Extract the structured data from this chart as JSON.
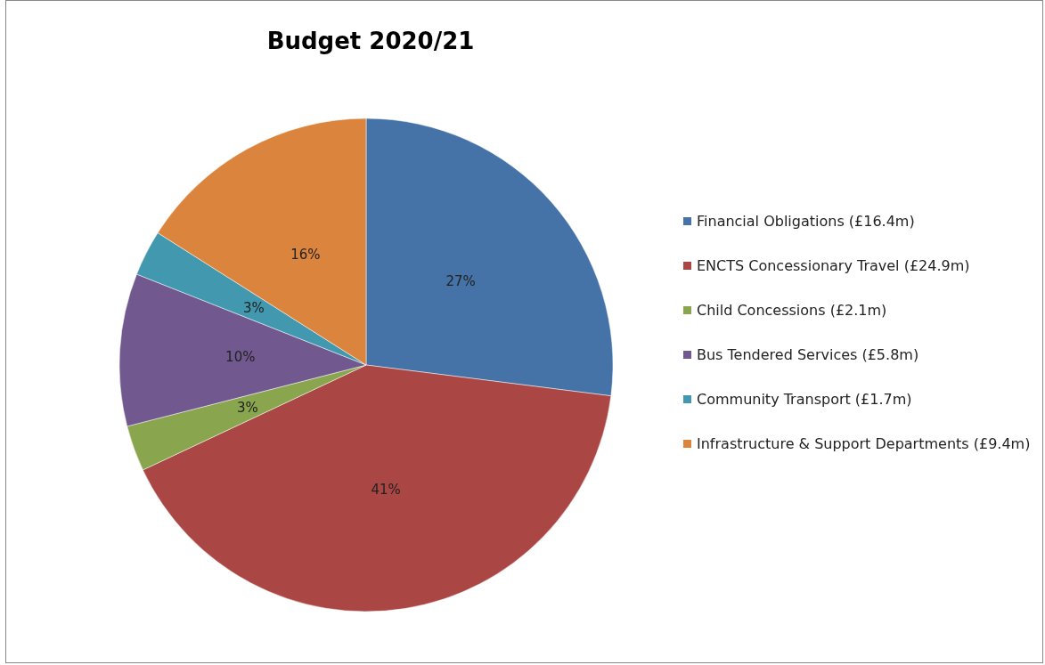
{
  "chart_data": {
    "type": "pie",
    "title": "Budget 2020/21",
    "categories": [
      "Financial Obligations (£16.4m)",
      "ENCTS Concessionary Travel (£24.9m)",
      "Child Concessions (£2.1m)",
      "Bus Tendered Services (£5.8m)",
      "Community Transport (£1.7m)",
      "Infrastructure & Support Departments (£9.4m)"
    ],
    "values": [
      27,
      41,
      3,
      10,
      3,
      16
    ],
    "value_labels": [
      "27%",
      "41%",
      "3%",
      "10%",
      "3%",
      "16%"
    ],
    "colors": [
      "#4572a7",
      "#aa4643",
      "#89a54e",
      "#71588f",
      "#4198af",
      "#db843d"
    ],
    "legend": "right"
  }
}
